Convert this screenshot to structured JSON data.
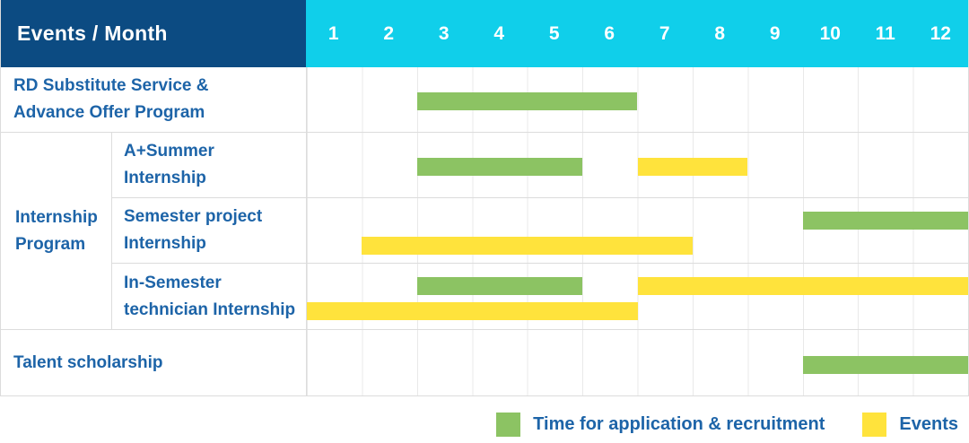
{
  "header": {
    "title": "Events / Month",
    "months": [
      "1",
      "2",
      "3",
      "4",
      "5",
      "6",
      "7",
      "8",
      "9",
      "10",
      "11",
      "12"
    ]
  },
  "colors": {
    "navy": "#0C4B82",
    "cyan": "#10CFEA",
    "green": "#8CC363",
    "yellow": "#FFE33C",
    "label_blue": "#1D64A8"
  },
  "rows": {
    "rd": {
      "line1": "RD Substitute Service &",
      "line2": "Advance Offer Program",
      "bars": [
        {
          "color": "green",
          "start": 3,
          "end": 6,
          "line": "center"
        }
      ]
    },
    "group_label": {
      "line1": "Internship",
      "line2": "Program"
    },
    "a_summer": {
      "line1": "A+Summer",
      "line2": "Internship",
      "bars": [
        {
          "color": "green",
          "start": 3,
          "end": 5,
          "line": "center"
        },
        {
          "color": "yellow",
          "start": 7,
          "end": 8,
          "line": "center"
        }
      ]
    },
    "semester_project": {
      "line1": "Semester project",
      "line2": "Internship",
      "bars": [
        {
          "color": "green",
          "start": 10,
          "end": 12,
          "line": "top"
        },
        {
          "color": "yellow",
          "start": 2,
          "end": 7,
          "line": "bottom"
        }
      ]
    },
    "in_semester": {
      "line1": "In-Semester",
      "line2": "technician Internship",
      "bars": [
        {
          "color": "green",
          "start": 3,
          "end": 5,
          "line": "top"
        },
        {
          "color": "yellow",
          "start": 7,
          "end": 12,
          "line": "top"
        },
        {
          "color": "yellow",
          "start": 1,
          "end": 6,
          "line": "bottom"
        }
      ]
    },
    "talent": {
      "line1": "Talent scholarship",
      "bars": [
        {
          "color": "green",
          "start": 10,
          "end": 12,
          "line": "center"
        }
      ]
    }
  },
  "legend": {
    "application": "Time for application & recruitment",
    "events": "Events"
  },
  "chart_data": {
    "type": "table",
    "subtype": "gantt",
    "title": "Events / Month",
    "columns": [
      1,
      2,
      3,
      4,
      5,
      6,
      7,
      8,
      9,
      10,
      11,
      12
    ],
    "legend": [
      "Time for application & recruitment",
      "Events"
    ],
    "rows": [
      {
        "label": "RD Substitute Service & Advance Offer Program",
        "group": null,
        "spans": [
          {
            "kind": "Time for application & recruitment",
            "months": [
              3,
              6
            ]
          }
        ]
      },
      {
        "label": "A+Summer Internship",
        "group": "Internship Program",
        "spans": [
          {
            "kind": "Time for application & recruitment",
            "months": [
              3,
              5
            ]
          },
          {
            "kind": "Events",
            "months": [
              7,
              8
            ]
          }
        ]
      },
      {
        "label": "Semester project Internship",
        "group": "Internship Program",
        "spans": [
          {
            "kind": "Time for application & recruitment",
            "months": [
              10,
              12
            ]
          },
          {
            "kind": "Events",
            "months": [
              2,
              7
            ]
          }
        ]
      },
      {
        "label": "In-Semester technician Internship",
        "group": "Internship Program",
        "spans": [
          {
            "kind": "Time for application & recruitment",
            "months": [
              3,
              5
            ]
          },
          {
            "kind": "Events",
            "months": [
              7,
              12
            ]
          },
          {
            "kind": "Events",
            "months": [
              1,
              6
            ]
          }
        ]
      },
      {
        "label": "Talent scholarship",
        "group": null,
        "spans": [
          {
            "kind": "Time for application & recruitment",
            "months": [
              10,
              12
            ]
          }
        ]
      }
    ]
  }
}
